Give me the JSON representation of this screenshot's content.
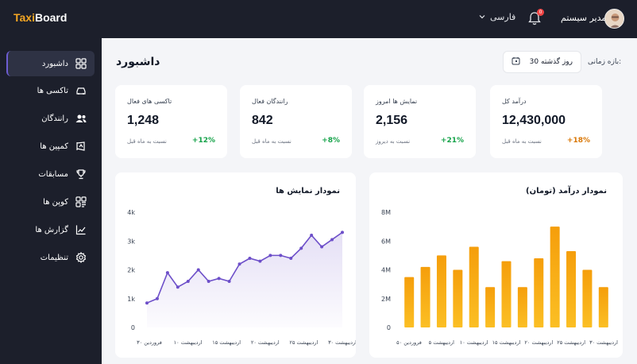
{
  "header": {
    "logo_taxi": "Taxi",
    "logo_board": "Board",
    "language": "فارسی",
    "notification_count": "0",
    "user_name": "مدیر سیستم"
  },
  "sidebar": {
    "items": [
      {
        "label": "داشبورد",
        "icon": "dashboard-icon"
      },
      {
        "label": "تاکسی ها",
        "icon": "car-icon"
      },
      {
        "label": "رانندگان",
        "icon": "users-icon"
      },
      {
        "label": "کمپین ها",
        "icon": "campaign-icon"
      },
      {
        "label": "مسابقات",
        "icon": "trophy-icon"
      },
      {
        "label": "کوپن ها",
        "icon": "coupon-icon"
      },
      {
        "label": "گزارش ها",
        "icon": "report-icon"
      },
      {
        "label": "تنظیمات",
        "icon": "settings-icon"
      }
    ]
  },
  "page": {
    "title": "داشبورد",
    "range_label": "بازه زمانی:",
    "range_value": "30 روز گذشته"
  },
  "stats": [
    {
      "label": "تاکسی های فعال",
      "value": "1,248",
      "sub": "نسبت به ماه قبل",
      "change": "+12%",
      "color": "#16a34a"
    },
    {
      "label": "رانندگان فعال",
      "value": "842",
      "sub": "نسبت به ماه قبل",
      "change": "+8%",
      "color": "#16a34a"
    },
    {
      "label": "نمایش ها امروز",
      "value": "2,156",
      "sub": "نسبت به دیروز",
      "change": "+21%",
      "color": "#16a34a"
    },
    {
      "label": "درآمد کل",
      "value": "12,430,000",
      "sub": "نسبت به ماه قبل",
      "change": "+18%",
      "color": "#d97706"
    }
  ],
  "chart_data": [
    {
      "type": "line",
      "title": "نمودار نمایش ها",
      "y_ticks": [
        "0",
        "1k",
        "2k",
        "3k",
        "4k"
      ],
      "ylim": [
        0,
        4000
      ],
      "x_tick_labels": [
        "۳۰ فروردین",
        "۱۰ اردیبهشت",
        "۱۵ اردیبهشت",
        "۲۰ اردیبهشت",
        "۲۵ اردیبهشت",
        "۳۰ اردیبهشت"
      ],
      "values": [
        850,
        1000,
        1900,
        1400,
        1600,
        2000,
        1600,
        1700,
        1600,
        2200,
        2400,
        2300,
        2500,
        2500,
        2400,
        2750,
        3200,
        2800,
        3050,
        3300
      ],
      "color": "#6d4fc9"
    },
    {
      "type": "bar",
      "title": "نمودار درآمد (تومان)",
      "y_ticks": [
        "0",
        "2M",
        "4M",
        "6M",
        "8M"
      ],
      "ylim": [
        0,
        8
      ],
      "x_tick_labels": [
        "۵۰ فروردین",
        "۵ اردیبهشت",
        "۱۰ اردیبهشت",
        "۱۵ اردیبهشت",
        "۲۰ اردیبهشت",
        "۲۵ اردیبهشت",
        "۳۰ اردیبهشت"
      ],
      "values": [
        3.5,
        4.2,
        5.0,
        4.0,
        5.6,
        2.8,
        4.6,
        2.8,
        4.8,
        7.0,
        5.3,
        4.0,
        2.8
      ],
      "color": "#f59e0b"
    }
  ]
}
